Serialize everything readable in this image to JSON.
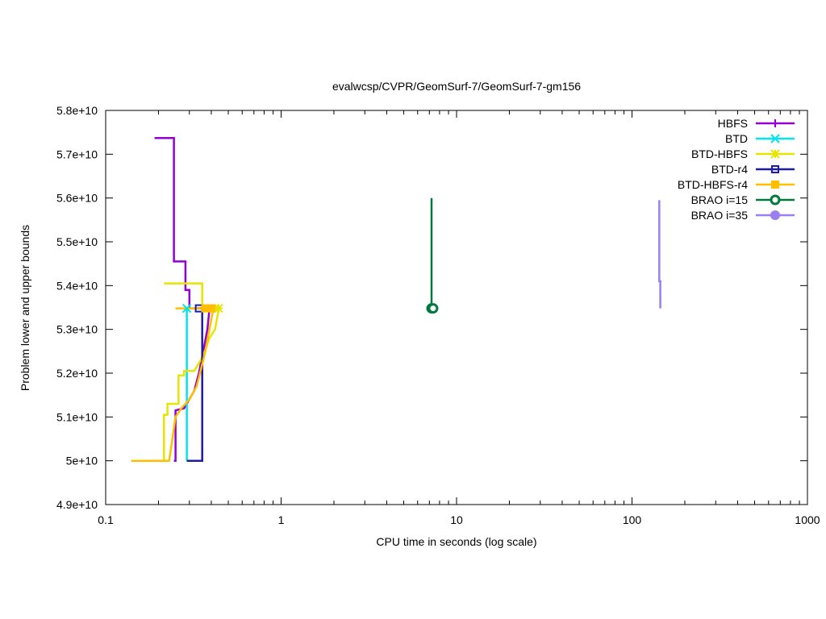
{
  "chart_data": {
    "type": "line",
    "title": "evalwcsp/CVPR/GeomSurf-7/GeomSurf-7-gm156",
    "xlabel": "CPU time in seconds (log scale)",
    "ylabel": "Problem lower and upper bounds",
    "xscale": "log",
    "xlim": [
      0.1,
      1000
    ],
    "ylim": [
      49000000000.0,
      58000000000.0
    ],
    "x_ticks": [
      {
        "value": 0.1,
        "label": "0.1"
      },
      {
        "value": 1,
        "label": "1"
      },
      {
        "value": 10,
        "label": "10"
      },
      {
        "value": 100,
        "label": "100"
      },
      {
        "value": 1000,
        "label": "1000"
      }
    ],
    "y_ticks": [
      {
        "value": 49000000000.0,
        "label": "4.9e+10"
      },
      {
        "value": 50000000000.0,
        "label": "5e+10"
      },
      {
        "value": 51000000000.0,
        "label": "5.1e+10"
      },
      {
        "value": 52000000000.0,
        "label": "5.2e+10"
      },
      {
        "value": 53000000000.0,
        "label": "5.3e+10"
      },
      {
        "value": 54000000000.0,
        "label": "5.4e+10"
      },
      {
        "value": 55000000000.0,
        "label": "5.5e+10"
      },
      {
        "value": 56000000000.0,
        "label": "5.6e+10"
      },
      {
        "value": 57000000000.0,
        "label": "5.7e+10"
      },
      {
        "value": 58000000000.0,
        "label": "5.8e+10"
      }
    ],
    "legend_position": "top-right",
    "grid": false,
    "series": [
      {
        "name": "HBFS",
        "color": "#9400d3",
        "marker": "plus",
        "upper": [
          [
            0.19,
            57370000000.0
          ],
          [
            0.245,
            57370000000.0
          ],
          [
            0.245,
            54550000000.0
          ],
          [
            0.285,
            54550000000.0
          ],
          [
            0.285,
            53900000000.0
          ],
          [
            0.3,
            53900000000.0
          ],
          [
            0.3,
            53480000000.0
          ],
          [
            0.38,
            53480000000.0
          ]
        ],
        "lower": [
          [
            0.245,
            50000000000.0
          ],
          [
            0.25,
            50000000000.0
          ],
          [
            0.25,
            51150000000.0
          ],
          [
            0.28,
            51200000000.0
          ],
          [
            0.32,
            51600000000.0
          ],
          [
            0.34,
            52000000000.0
          ],
          [
            0.36,
            52500000000.0
          ],
          [
            0.38,
            53000000000.0
          ],
          [
            0.39,
            53450000000.0
          ]
        ],
        "markers": []
      },
      {
        "name": "BTD",
        "color": "#00e5ee",
        "marker": "cross",
        "upper": [
          [
            0.29,
            53480000000.0
          ],
          [
            0.31,
            53480000000.0
          ]
        ],
        "lower": [
          [
            0.29,
            50000000000.0
          ],
          [
            0.29,
            53480000000.0
          ]
        ],
        "markers": [
          [
            0.29,
            53480000000.0
          ]
        ]
      },
      {
        "name": "BTD-HBFS",
        "color": "#e5e500",
        "marker": "star",
        "upper": [
          [
            0.215,
            54050000000.0
          ],
          [
            0.355,
            54050000000.0
          ],
          [
            0.355,
            53480000000.0
          ],
          [
            0.44,
            53480000000.0
          ]
        ],
        "lower": [
          [
            0.14,
            50000000000.0
          ],
          [
            0.215,
            50000000000.0
          ],
          [
            0.215,
            51050000000.0
          ],
          [
            0.225,
            51050000000.0
          ],
          [
            0.225,
            51300000000.0
          ],
          [
            0.26,
            51300000000.0
          ],
          [
            0.26,
            51950000000.0
          ],
          [
            0.28,
            51950000000.0
          ],
          [
            0.28,
            52050000000.0
          ],
          [
            0.32,
            52050000000.0
          ],
          [
            0.36,
            52400000000.0
          ],
          [
            0.39,
            52800000000.0
          ],
          [
            0.42,
            53000000000.0
          ],
          [
            0.44,
            53450000000.0
          ]
        ],
        "markers": [
          [
            0.42,
            53480000000.0
          ],
          [
            0.44,
            53480000000.0
          ]
        ]
      },
      {
        "name": "BTD-r4",
        "color": "#1c1ca5",
        "marker": "open-square",
        "upper": [
          [
            0.325,
            53480000000.0
          ],
          [
            0.355,
            53480000000.0
          ]
        ],
        "lower": [
          [
            0.29,
            50000000000.0
          ],
          [
            0.355,
            50000000000.0
          ],
          [
            0.355,
            53480000000.0
          ]
        ],
        "markers": [
          [
            0.34,
            53480000000.0
          ]
        ]
      },
      {
        "name": "BTD-HBFS-r4",
        "color": "#ffbf00",
        "marker": "filled-square",
        "upper": [
          [
            0.25,
            53480000000.0
          ],
          [
            0.43,
            53480000000.0
          ]
        ],
        "lower": [
          [
            0.14,
            50000000000.0
          ],
          [
            0.23,
            50000000000.0
          ],
          [
            0.24,
            50500000000.0
          ],
          [
            0.25,
            51000000000.0
          ],
          [
            0.27,
            51200000000.0
          ],
          [
            0.3,
            51400000000.0
          ],
          [
            0.33,
            51700000000.0
          ],
          [
            0.35,
            52100000000.0
          ],
          [
            0.37,
            52500000000.0
          ],
          [
            0.39,
            53000000000.0
          ],
          [
            0.41,
            53450000000.0
          ]
        ],
        "markers": [
          [
            0.37,
            53480000000.0
          ],
          [
            0.4,
            53480000000.0
          ]
        ]
      },
      {
        "name": "BRAO i=15",
        "color": "#007a3d",
        "marker": "open-circle",
        "upper": [
          [
            7.2,
            56000000000.0
          ],
          [
            7.2,
            53480000000.0
          ]
        ],
        "lower": [],
        "markers": [
          [
            7.2,
            53480000000.0
          ],
          [
            7.35,
            53480000000.0
          ]
        ]
      },
      {
        "name": "BRAO i=35",
        "color": "#9b7ff0",
        "marker": "filled-circle",
        "upper": [
          [
            143,
            55950000000.0
          ],
          [
            143,
            54100000000.0
          ],
          [
            145,
            54100000000.0
          ],
          [
            145,
            53480000000.0
          ]
        ],
        "lower": [],
        "markers": []
      }
    ]
  }
}
